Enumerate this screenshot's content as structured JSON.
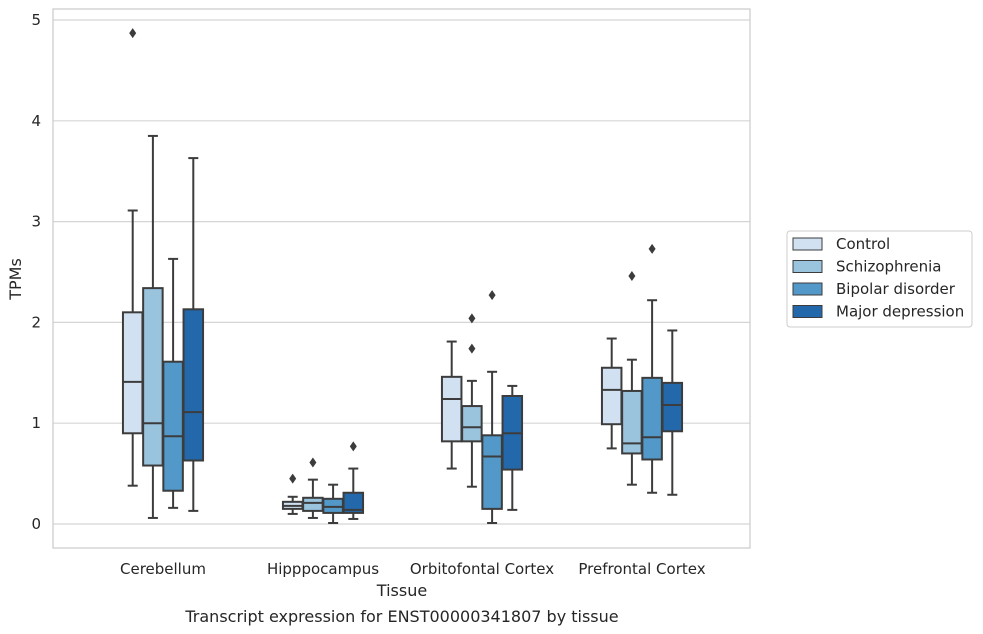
{
  "chart_data": {
    "type": "box",
    "caption": "Transcript expression for ENST00000341807 by tissue",
    "xlabel": "Tissue",
    "ylabel": "TPMs",
    "ylim": [
      -0.24,
      5.12
    ],
    "yticks": [
      0,
      1,
      2,
      3,
      4,
      5
    ],
    "grid": "horizontal",
    "legend_position": "right",
    "categories": [
      "Cerebellum",
      "Hipppocampus",
      "Orbitofontal Cortex",
      "Prefrontal Cortex"
    ],
    "series": [
      {
        "name": "Control",
        "color": "#d1e1f2",
        "boxes": [
          {
            "min": 0.38,
            "q1": 0.9,
            "median": 1.41,
            "q3": 2.1,
            "max": 3.11,
            "outliers": [
              4.87
            ]
          },
          {
            "min": 0.1,
            "q1": 0.15,
            "median": 0.18,
            "q3": 0.22,
            "max": 0.27,
            "outliers": [
              0.45
            ]
          },
          {
            "min": 0.55,
            "q1": 0.82,
            "median": 1.24,
            "q3": 1.46,
            "max": 1.81,
            "outliers": []
          },
          {
            "min": 0.75,
            "q1": 0.99,
            "median": 1.33,
            "q3": 1.55,
            "max": 1.84,
            "outliers": []
          }
        ]
      },
      {
        "name": "Schizophrenia",
        "color": "#9ac3de",
        "boxes": [
          {
            "min": 0.06,
            "q1": 0.58,
            "median": 1.0,
            "q3": 2.34,
            "max": 3.85,
            "outliers": []
          },
          {
            "min": 0.06,
            "q1": 0.13,
            "median": 0.21,
            "q3": 0.26,
            "max": 0.44,
            "outliers": [
              0.61
            ]
          },
          {
            "min": 0.37,
            "q1": 0.82,
            "median": 0.96,
            "q3": 1.17,
            "max": 1.42,
            "outliers": [
              2.04,
              1.74
            ]
          },
          {
            "min": 0.39,
            "q1": 0.7,
            "median": 0.8,
            "q3": 1.32,
            "max": 1.63,
            "outliers": [
              2.46
            ]
          }
        ]
      },
      {
        "name": "Bipolar disorder",
        "color": "#5298c9",
        "boxes": [
          {
            "min": 0.16,
            "q1": 0.33,
            "median": 0.87,
            "q3": 1.61,
            "max": 2.63,
            "outliers": []
          },
          {
            "min": 0.01,
            "q1": 0.11,
            "median": 0.17,
            "q3": 0.25,
            "max": 0.39,
            "outliers": []
          },
          {
            "min": 0.01,
            "q1": 0.15,
            "median": 0.67,
            "q3": 0.88,
            "max": 1.51,
            "outliers": [
              2.27
            ]
          },
          {
            "min": 0.31,
            "q1": 0.64,
            "median": 0.86,
            "q3": 1.45,
            "max": 2.22,
            "outliers": [
              2.73
            ]
          }
        ]
      },
      {
        "name": "Major depression",
        "color": "#2368ab",
        "boxes": [
          {
            "min": 0.13,
            "q1": 0.63,
            "median": 1.11,
            "q3": 2.13,
            "max": 3.63,
            "outliers": []
          },
          {
            "min": 0.05,
            "q1": 0.11,
            "median": 0.14,
            "q3": 0.31,
            "max": 0.55,
            "outliers": [
              0.77
            ]
          },
          {
            "min": 0.14,
            "q1": 0.54,
            "median": 0.9,
            "q3": 1.27,
            "max": 1.37,
            "outliers": []
          },
          {
            "min": 0.29,
            "q1": 0.92,
            "median": 1.18,
            "q3": 1.4,
            "max": 1.92,
            "outliers": []
          }
        ]
      }
    ]
  }
}
